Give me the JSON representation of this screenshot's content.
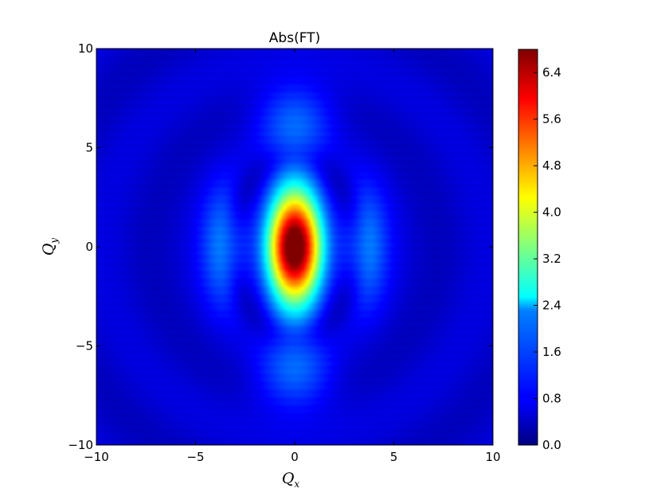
{
  "chart_data": {
    "type": "heatmap",
    "title": "Abs(FT)",
    "xlabel": "Q",
    "xlabel_sub": "x",
    "ylabel": "Q",
    "ylabel_sub": "y",
    "xlim": [
      -10,
      10
    ],
    "ylim": [
      -10,
      10
    ],
    "x_ticks": [
      -10,
      -5,
      0,
      5,
      10
    ],
    "y_ticks": [
      -10,
      -5,
      0,
      5,
      10
    ],
    "x_tick_labels": [
      "−10",
      "−5",
      "0",
      "5",
      "10"
    ],
    "y_tick_labels": [
      "−10",
      "−5",
      "0",
      "5",
      "10"
    ],
    "colormap": "jet",
    "colorbar": {
      "min": 0.0,
      "max": 6.8,
      "ticks": [
        0.0,
        0.8,
        1.6,
        2.4,
        3.2,
        4.0,
        4.8,
        5.6,
        6.4
      ],
      "tick_labels": [
        "0.0",
        "0.8",
        "1.6",
        "2.4",
        "3.2",
        "4.0",
        "4.8",
        "5.6",
        "6.4"
      ]
    },
    "features": [
      {
        "name": "central peak",
        "x": 0,
        "y": 0,
        "value": 6.8
      },
      {
        "name": "side lobe",
        "x": -3.5,
        "y": 0,
        "value": 1.3
      },
      {
        "name": "side lobe",
        "x": 3.5,
        "y": 0,
        "value": 1.3
      },
      {
        "name": "upper lobe",
        "x": 0,
        "y": 6.5,
        "value": 1.0
      },
      {
        "name": "lower lobe",
        "x": 0,
        "y": -6.5,
        "value": 1.0
      }
    ],
    "grid": false
  }
}
